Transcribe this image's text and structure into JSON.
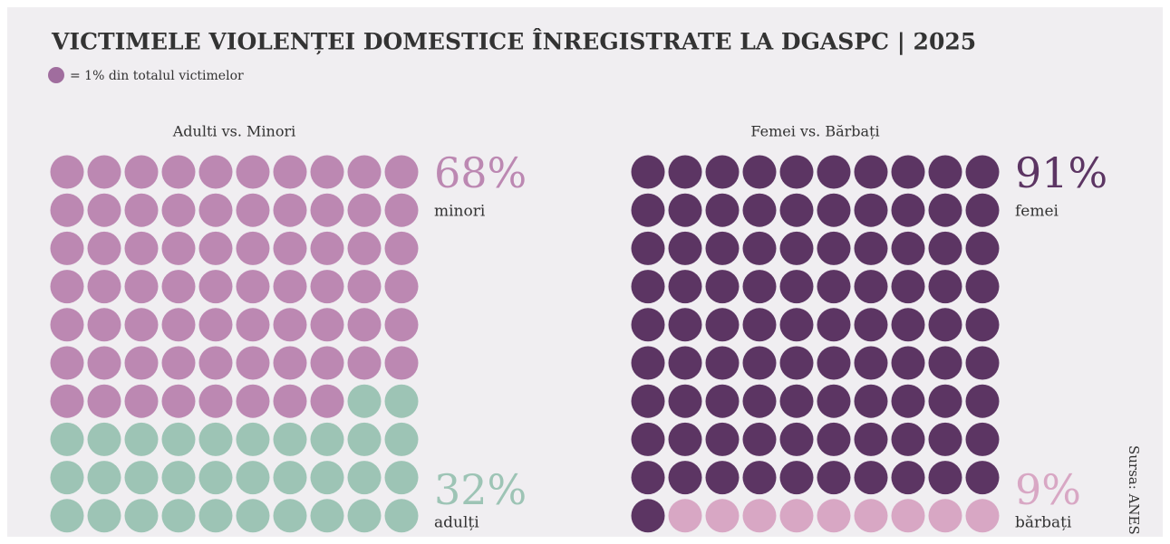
{
  "title": "VICTIMELE VIOLENȚEI DOMESTICE ÎNREGISTRATE LA DGASPC | 2025",
  "legend": {
    "text": "= 1% din totalul victimelor",
    "color": "#a06d9e"
  },
  "source": "Sursa: ANES",
  "chart_data": [
    {
      "type": "waffle",
      "title": "Adulti vs. Minori",
      "series": [
        {
          "name": "minori",
          "color": "#bc88b2",
          "values": [
            68
          ],
          "value_labels": [
            "68%"
          ]
        },
        {
          "name": "adulți",
          "color": "#9dc4b5",
          "values": [
            32
          ],
          "value_labels": [
            "32%"
          ]
        }
      ]
    },
    {
      "type": "waffle",
      "title": "Femei vs. Bărbați",
      "series": [
        {
          "name": "femei",
          "color": "#5c3563",
          "values": [
            91
          ],
          "value_labels": [
            "91%"
          ]
        },
        {
          "name": "bărbați",
          "color": "#d8a7c4",
          "values": [
            9
          ],
          "value_labels": [
            "9%"
          ]
        }
      ]
    }
  ]
}
